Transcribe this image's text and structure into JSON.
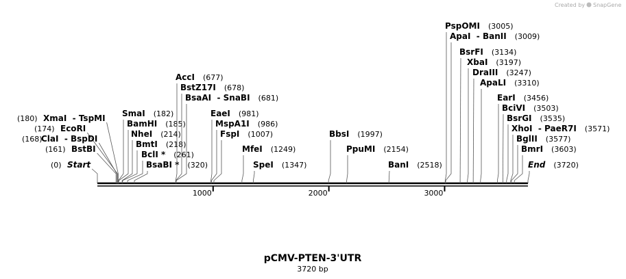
{
  "watermark": {
    "prefix": "Created by",
    "brand": "SnapGene"
  },
  "map": {
    "title": "pCMV-PTEN-3'UTR",
    "length": {
      "value": 3720,
      "label": "3720 bp"
    },
    "scale_ticks": [
      1000,
      2000,
      3000
    ],
    "sites": [
      {
        "name": "XmaI  - TspMI",
        "position": {
          "value": 180,
          "label": "(180)"
        }
      },
      {
        "name": "EcoRI",
        "position": {
          "value": 174,
          "label": "(174)"
        }
      },
      {
        "name": "ClaI  - BspDI",
        "position": {
          "value": 168,
          "label": "(168)"
        }
      },
      {
        "name": "BstBI",
        "position": {
          "value": 161,
          "label": "(161)"
        }
      },
      {
        "name": "Start",
        "position": {
          "value": 0,
          "label": "(0)"
        }
      },
      {
        "name": "SmaI",
        "position": {
          "value": 182,
          "label": "(182)"
        }
      },
      {
        "name": "BamHI",
        "position": {
          "value": 185,
          "label": "(185)"
        }
      },
      {
        "name": "NheI",
        "position": {
          "value": 214,
          "label": "(214)"
        }
      },
      {
        "name": "BmtI",
        "position": {
          "value": 218,
          "label": "(218)"
        }
      },
      {
        "name": "BclI *",
        "position": {
          "value": 261,
          "label": "(261)"
        }
      },
      {
        "name": "BsaBI *",
        "position": {
          "value": 320,
          "label": "(320)"
        }
      },
      {
        "name": "AccI",
        "position": {
          "value": 677,
          "label": "(677)"
        }
      },
      {
        "name": "BstZ17I",
        "position": {
          "value": 678,
          "label": "(678)"
        }
      },
      {
        "name": "BsaAI  - SnaBI",
        "position": {
          "value": 681,
          "label": "(681)"
        }
      },
      {
        "name": "EaeI",
        "position": {
          "value": 981,
          "label": "(981)"
        }
      },
      {
        "name": "MspA1I",
        "position": {
          "value": 986,
          "label": "(986)"
        }
      },
      {
        "name": "FspI",
        "position": {
          "value": 1007,
          "label": "(1007)"
        }
      },
      {
        "name": "MfeI",
        "position": {
          "value": 1249,
          "label": "(1249)"
        }
      },
      {
        "name": "SpeI",
        "position": {
          "value": 1347,
          "label": "(1347)"
        }
      },
      {
        "name": "BbsI",
        "position": {
          "value": 1997,
          "label": "(1997)"
        }
      },
      {
        "name": "PpuMI",
        "position": {
          "value": 2154,
          "label": "(2154)"
        }
      },
      {
        "name": "BanI",
        "position": {
          "value": 2518,
          "label": "(2518)"
        }
      },
      {
        "name": "PspOMI",
        "position": {
          "value": 3005,
          "label": "(3005)"
        }
      },
      {
        "name": "ApaI  - BanII",
        "position": {
          "value": 3009,
          "label": "(3009)"
        }
      },
      {
        "name": "BsrFI",
        "position": {
          "value": 3134,
          "label": "(3134)"
        }
      },
      {
        "name": "XbaI",
        "position": {
          "value": 3197,
          "label": "(3197)"
        }
      },
      {
        "name": "DraIII",
        "position": {
          "value": 3247,
          "label": "(3247)"
        }
      },
      {
        "name": "ApaLI",
        "position": {
          "value": 3310,
          "label": "(3310)"
        }
      },
      {
        "name": "EarI",
        "position": {
          "value": 3456,
          "label": "(3456)"
        }
      },
      {
        "name": "BciVI",
        "position": {
          "value": 3503,
          "label": "(3503)"
        }
      },
      {
        "name": "BsrGI",
        "position": {
          "value": 3535,
          "label": "(3535)"
        }
      },
      {
        "name": "XhoI  - PaeR7I",
        "position": {
          "value": 3571,
          "label": "(3571)"
        }
      },
      {
        "name": "BglII",
        "position": {
          "value": 3577,
          "label": "(3577)"
        }
      },
      {
        "name": "BmrI",
        "position": {
          "value": 3603,
          "label": "(3603)"
        }
      },
      {
        "name": "End",
        "position": {
          "value": 3720,
          "label": "(3720)"
        }
      }
    ]
  }
}
